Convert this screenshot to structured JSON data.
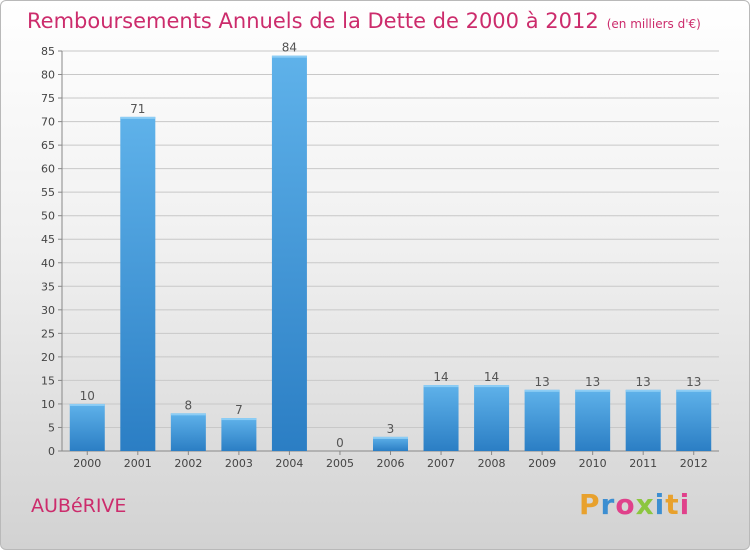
{
  "header": {
    "title": "Remboursements Annuels de la Dette de 2000 à 2012",
    "subtitle": "(en milliers d'€)"
  },
  "footer": {
    "commune": "AUBéRIVE",
    "logo_text": "Proxiti"
  },
  "colors": {
    "title": "#cc2c6c",
    "bar_top": "#5fb2ea",
    "bar_bottom": "#2b7ec4",
    "grid": "#c8c8c8",
    "logo_letters": [
      "#e8a12d",
      "#3c8ed1",
      "#e0418b",
      "#8cc63f",
      "#3c8ed1",
      "#e8a12d",
      "#e0418b"
    ]
  },
  "chart_data": {
    "type": "bar",
    "title": "Remboursements Annuels de la Dette de 2000 à 2012",
    "subtitle": "(en milliers d'€)",
    "categories": [
      "2000",
      "2001",
      "2002",
      "2003",
      "2004",
      "2005",
      "2006",
      "2007",
      "2008",
      "2009",
      "2010",
      "2011",
      "2012"
    ],
    "values": [
      10,
      71,
      8,
      7,
      84,
      0,
      3,
      14,
      14,
      13,
      13,
      13,
      13
    ],
    "ylim": [
      0,
      85
    ],
    "yticks": [
      0,
      5,
      10,
      15,
      20,
      25,
      30,
      35,
      40,
      45,
      50,
      55,
      60,
      65,
      70,
      75,
      80,
      85
    ],
    "grid": true,
    "legend": "none"
  }
}
